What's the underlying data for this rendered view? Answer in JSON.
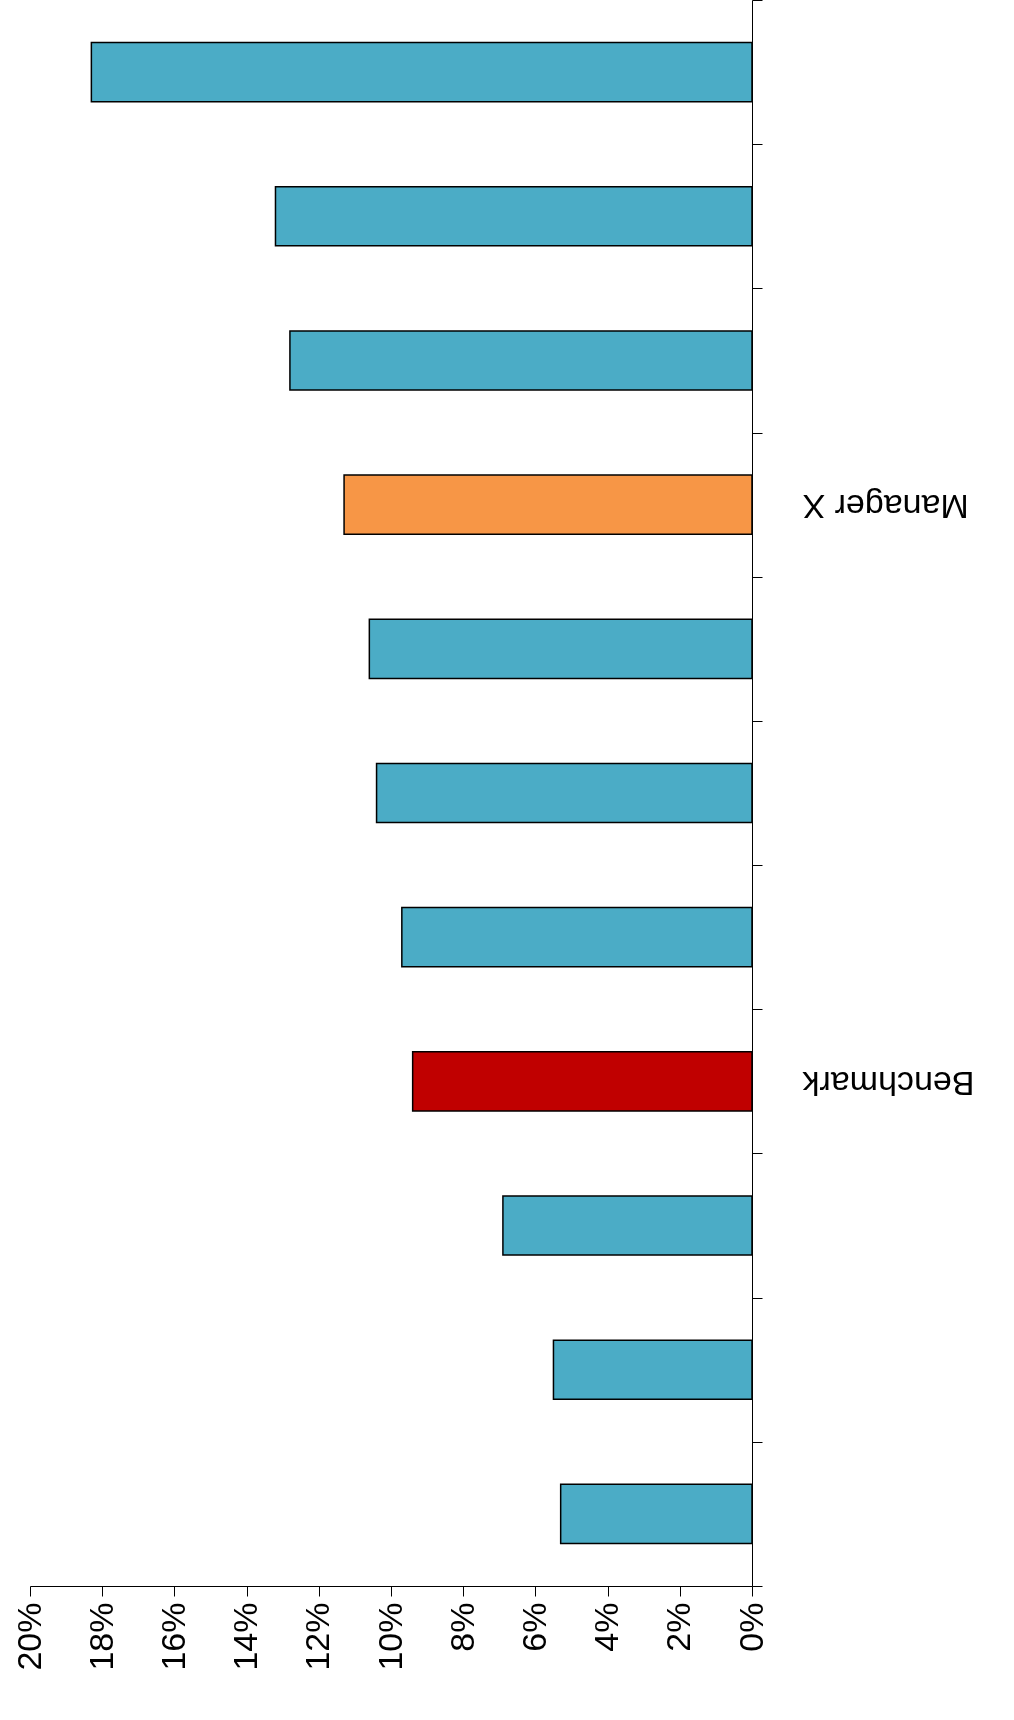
{
  "chart_data": {
    "type": "bar",
    "orientation": "horizontal",
    "categories": [
      null,
      null,
      null,
      "Manager X",
      null,
      null,
      null,
      "Benchmark",
      null,
      null,
      null
    ],
    "values": [
      18.3,
      13.2,
      12.8,
      11.3,
      10.6,
      10.4,
      9.7,
      9.4,
      6.9,
      5.5,
      5.3
    ],
    "colors": [
      "#4bacc6",
      "#4bacc6",
      "#4bacc6",
      "#f79646",
      "#4bacc6",
      "#4bacc6",
      "#4bacc6",
      "#c00000",
      "#4bacc6",
      "#4bacc6",
      "#4bacc6"
    ],
    "xlim": [
      20,
      0
    ],
    "xticks": [
      {
        "value": 0,
        "label": "0%"
      },
      {
        "value": 2,
        "label": "2%"
      },
      {
        "value": 4,
        "label": "4%"
      },
      {
        "value": 6,
        "label": "6%"
      },
      {
        "value": 8,
        "label": "8%"
      },
      {
        "value": 10,
        "label": "10%"
      },
      {
        "value": 12,
        "label": "12%"
      },
      {
        "value": 14,
        "label": "14%"
      },
      {
        "value": 16,
        "label": "16%"
      },
      {
        "value": 18,
        "label": "18%"
      },
      {
        "value": 20,
        "label": "20%"
      }
    ],
    "grid": false
  }
}
